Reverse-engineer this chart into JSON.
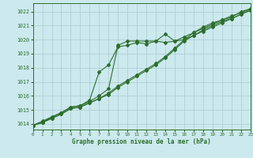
{
  "title": "Graphe pression niveau de la mer (hPa)",
  "bg_color": "#cce9ee",
  "line_color": "#2d6e2d",
  "grid_color": "#aacccc",
  "xlim": [
    0,
    23
  ],
  "ylim": [
    1013.6,
    1022.6
  ],
  "yticks": [
    1014,
    1015,
    1016,
    1017,
    1018,
    1019,
    1020,
    1021,
    1022
  ],
  "xticks": [
    0,
    1,
    2,
    3,
    4,
    5,
    6,
    7,
    8,
    9,
    10,
    11,
    12,
    13,
    14,
    15,
    16,
    17,
    18,
    19,
    20,
    21,
    22,
    23
  ],
  "series1": [
    1013.9,
    1014.1,
    1014.5,
    1014.8,
    1015.2,
    1015.3,
    1015.6,
    1016.0,
    1016.5,
    1019.6,
    1019.9,
    1019.9,
    1019.9,
    1019.9,
    1020.4,
    1019.9,
    1020.0,
    1020.5,
    1020.8,
    1021.1,
    1021.4,
    1021.6,
    1022.0,
    1022.2
  ],
  "series2": [
    1013.9,
    1014.1,
    1014.4,
    1014.7,
    1015.1,
    1015.2,
    1015.5,
    1015.8,
    1016.2,
    1016.7,
    1017.1,
    1017.5,
    1017.9,
    1018.3,
    1018.8,
    1019.4,
    1020.0,
    1020.3,
    1020.7,
    1021.0,
    1021.3,
    1021.5,
    1021.8,
    1022.1
  ],
  "series3": [
    1013.9,
    1014.1,
    1014.4,
    1014.7,
    1015.1,
    1015.2,
    1015.5,
    1015.8,
    1016.1,
    1016.6,
    1017.0,
    1017.4,
    1017.8,
    1018.2,
    1018.7,
    1019.3,
    1019.9,
    1020.3,
    1020.6,
    1020.9,
    1021.2,
    1021.5,
    1021.8,
    1022.1
  ],
  "series4": [
    1013.9,
    1014.2,
    1014.5,
    1014.8,
    1015.2,
    1015.3,
    1015.7,
    1017.7,
    1018.2,
    1019.5,
    1019.6,
    1019.8,
    1019.7,
    1019.9,
    1019.8,
    1019.9,
    1020.2,
    1020.5,
    1020.9,
    1021.2,
    1021.4,
    1021.7,
    1021.9,
    1022.2
  ]
}
